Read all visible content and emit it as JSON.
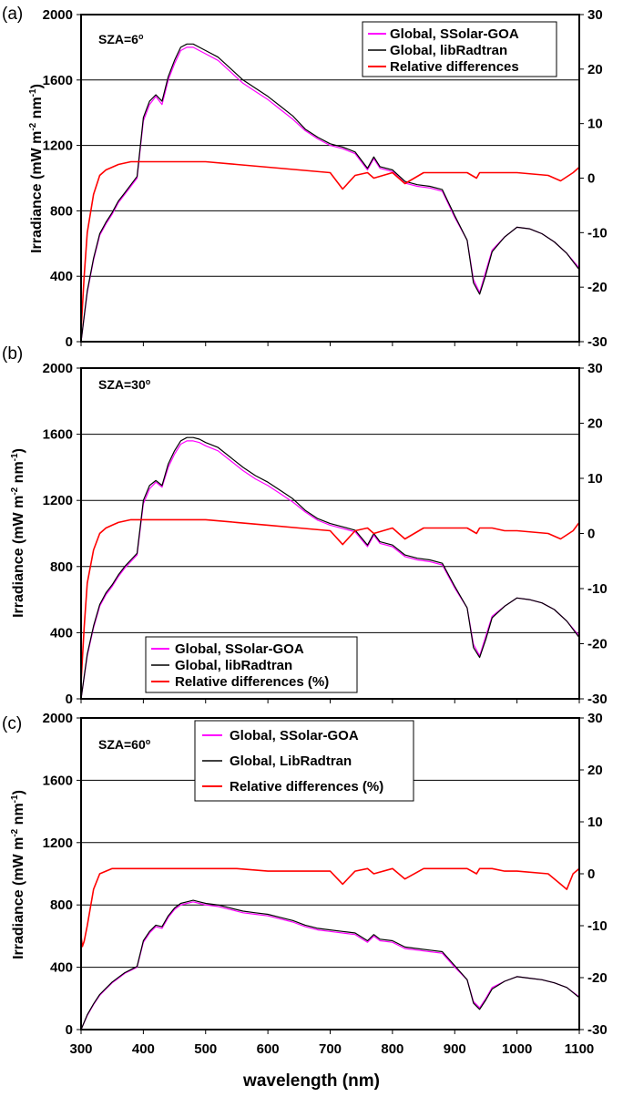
{
  "figure": {
    "xlabel": "wavelength (nm)",
    "x_ticks": [
      "300",
      "400",
      "500",
      "600",
      "700",
      "800",
      "900",
      "1000",
      "1100"
    ]
  },
  "panels": [
    {
      "label": "(a)",
      "sza_text": "SZA=6",
      "sza_sup": "o",
      "ylabel_main": "Irradiance (mW m",
      "ylabel_sup1": "-2",
      "ylabel_mid": " nm",
      "ylabel_sup2": "-1",
      "ylabel_end": ")",
      "legend_items": [
        "Global, SSolar-GOA",
        "Global, libRadtran",
        "Relative differences"
      ]
    },
    {
      "label": "(b)",
      "sza_text": "SZA=30",
      "sza_sup": "o",
      "ylabel_main": "Irradiance (mW m",
      "ylabel_sup1": "-2",
      "ylabel_mid": " nm",
      "ylabel_sup2": "-1",
      "ylabel_end": ")",
      "legend_items": [
        "Global, SSolar-GOA",
        "Global, libRadtran",
        "Relative differences (%)"
      ]
    },
    {
      "label": "(c)",
      "sza_text": "SZA=60",
      "sza_sup": "o",
      "ylabel_main": "Irradiance (mW m",
      "ylabel_sup1": "-2",
      "ylabel_mid": " nm",
      "ylabel_sup2": "-1",
      "ylabel_end": ")",
      "legend_items": [
        "Global, SSolar-GOA",
        "Global, LibRadtran",
        "Relative differences (%)"
      ]
    }
  ],
  "chart_data": [
    {
      "type": "line",
      "panel": "(a)",
      "xlim": [
        300,
        1100
      ],
      "ylim_left": [
        0,
        2000
      ],
      "ylim_right": [
        -30,
        30
      ],
      "yticks_left": [
        "0",
        "400",
        "800",
        "1200",
        "1600",
        "2000"
      ],
      "yticks_right": [
        "-30",
        "-20",
        "-10",
        "0",
        "10",
        "20",
        "30"
      ],
      "grid": "horizontal",
      "legend_position": "top-right",
      "colors": {
        "ssolar": "#ff00ff",
        "libradtran": "#000000",
        "reldiff": "#ff0000"
      },
      "series": [
        {
          "name": "Global, SSolar-GOA",
          "axis": "left",
          "x": [
            300,
            310,
            320,
            330,
            340,
            350,
            360,
            370,
            380,
            390,
            400,
            410,
            420,
            430,
            440,
            450,
            460,
            470,
            480,
            490,
            500,
            520,
            540,
            560,
            580,
            600,
            620,
            640,
            660,
            680,
            700,
            720,
            740,
            760,
            770,
            780,
            800,
            820,
            840,
            860,
            880,
            900,
            920,
            930,
            940,
            950,
            960,
            980,
            1000,
            1020,
            1040,
            1060,
            1080,
            1100
          ],
          "y": [
            0,
            300,
            500,
            650,
            720,
            780,
            850,
            900,
            950,
            1000,
            1350,
            1450,
            1500,
            1450,
            1600,
            1700,
            1780,
            1800,
            1800,
            1780,
            1760,
            1720,
            1650,
            1580,
            1530,
            1480,
            1420,
            1360,
            1290,
            1240,
            1200,
            1180,
            1150,
            1050,
            1120,
            1060,
            1040,
            970,
            950,
            940,
            920,
            760,
            620,
            380,
            300,
            430,
            560,
            640,
            700,
            690,
            660,
            610,
            540,
            450
          ]
        },
        {
          "name": "Global, libRadtran",
          "axis": "left",
          "x": [
            300,
            310,
            320,
            330,
            340,
            350,
            360,
            370,
            380,
            390,
            400,
            410,
            420,
            430,
            440,
            450,
            460,
            470,
            480,
            490,
            500,
            520,
            540,
            560,
            580,
            600,
            620,
            640,
            660,
            680,
            700,
            720,
            740,
            760,
            770,
            780,
            800,
            820,
            840,
            860,
            880,
            900,
            920,
            930,
            940,
            950,
            960,
            980,
            1000,
            1020,
            1040,
            1060,
            1080,
            1100
          ],
          "y": [
            0,
            310,
            510,
            660,
            730,
            790,
            860,
            910,
            960,
            1010,
            1370,
            1470,
            1510,
            1470,
            1620,
            1720,
            1800,
            1820,
            1820,
            1800,
            1780,
            1740,
            1670,
            1600,
            1550,
            1500,
            1440,
            1380,
            1300,
            1250,
            1210,
            1190,
            1160,
            1060,
            1130,
            1070,
            1050,
            980,
            960,
            950,
            930,
            770,
            620,
            360,
            290,
            410,
            550,
            640,
            700,
            690,
            660,
            610,
            540,
            440
          ]
        },
        {
          "name": "Relative differences",
          "axis": "right",
          "x": [
            300,
            305,
            310,
            320,
            330,
            340,
            350,
            360,
            380,
            400,
            450,
            500,
            550,
            600,
            650,
            700,
            720,
            740,
            760,
            770,
            800,
            820,
            850,
            900,
            920,
            935,
            940,
            950,
            960,
            980,
            1000,
            1050,
            1070,
            1090,
            1100
          ],
          "y": [
            -28,
            -18,
            -10,
            -3,
            0.5,
            1.5,
            2,
            2.5,
            3,
            3,
            3,
            3,
            2.5,
            2,
            1.5,
            1,
            -2,
            0.5,
            1,
            0,
            1,
            -1,
            1,
            1,
            1,
            0,
            1,
            1,
            1,
            1,
            1,
            0.5,
            -0.5,
            1,
            2
          ]
        }
      ]
    },
    {
      "type": "line",
      "panel": "(b)",
      "xlim": [
        300,
        1100
      ],
      "ylim_left": [
        0,
        2000
      ],
      "ylim_right": [
        -30,
        30
      ],
      "yticks_left": [
        "0",
        "400",
        "800",
        "1200",
        "1600",
        "2000"
      ],
      "yticks_right": [
        "-30",
        "-20",
        "-10",
        "0",
        "10",
        "20",
        "30"
      ],
      "grid": "horizontal",
      "legend_position": "bottom-left",
      "colors": {
        "ssolar": "#ff00ff",
        "libradtran": "#000000",
        "reldiff": "#ff0000"
      },
      "series": [
        {
          "name": "Global, SSolar-GOA",
          "axis": "left",
          "x": [
            300,
            310,
            320,
            330,
            340,
            350,
            360,
            370,
            380,
            390,
            400,
            410,
            420,
            430,
            440,
            450,
            460,
            470,
            480,
            490,
            500,
            520,
            540,
            560,
            580,
            600,
            620,
            640,
            660,
            680,
            700,
            720,
            740,
            760,
            770,
            780,
            800,
            820,
            840,
            860,
            880,
            900,
            920,
            930,
            940,
            950,
            960,
            980,
            1000,
            1020,
            1040,
            1060,
            1080,
            1100
          ],
          "y": [
            0,
            260,
            430,
            560,
            630,
            680,
            740,
            790,
            830,
            870,
            1180,
            1270,
            1310,
            1280,
            1400,
            1480,
            1540,
            1560,
            1560,
            1550,
            1530,
            1500,
            1440,
            1380,
            1330,
            1290,
            1240,
            1190,
            1130,
            1080,
            1050,
            1030,
            1010,
            920,
            990,
            940,
            920,
            860,
            840,
            830,
            810,
            670,
            550,
            330,
            260,
            380,
            500,
            560,
            610,
            600,
            580,
            540,
            470,
            380
          ]
        },
        {
          "name": "Global, libRadtran",
          "axis": "left",
          "x": [
            300,
            310,
            320,
            330,
            340,
            350,
            360,
            370,
            380,
            390,
            400,
            410,
            420,
            430,
            440,
            450,
            460,
            470,
            480,
            490,
            500,
            520,
            540,
            560,
            580,
            600,
            620,
            640,
            660,
            680,
            700,
            720,
            740,
            760,
            770,
            780,
            800,
            820,
            840,
            860,
            880,
            900,
            920,
            930,
            940,
            950,
            960,
            980,
            1000,
            1020,
            1040,
            1060,
            1080,
            1100
          ],
          "y": [
            0,
            270,
            440,
            570,
            640,
            690,
            750,
            800,
            840,
            880,
            1200,
            1290,
            1320,
            1290,
            1420,
            1500,
            1560,
            1580,
            1580,
            1570,
            1550,
            1520,
            1460,
            1400,
            1350,
            1310,
            1260,
            1210,
            1140,
            1090,
            1060,
            1040,
            1020,
            930,
            1000,
            950,
            930,
            870,
            850,
            840,
            820,
            680,
            550,
            310,
            250,
            360,
            490,
            560,
            610,
            600,
            580,
            540,
            470,
            370
          ]
        },
        {
          "name": "Relative differences (%)",
          "axis": "right",
          "x": [
            300,
            305,
            310,
            320,
            330,
            340,
            350,
            360,
            380,
            400,
            450,
            500,
            550,
            600,
            650,
            700,
            720,
            740,
            760,
            770,
            800,
            820,
            850,
            900,
            920,
            935,
            940,
            950,
            960,
            980,
            1000,
            1050,
            1070,
            1090,
            1100
          ],
          "y": [
            -27,
            -17,
            -9,
            -3,
            0,
            1,
            1.5,
            2,
            2.5,
            2.5,
            2.5,
            2.5,
            2,
            1.5,
            1,
            0.5,
            -2,
            0.5,
            1,
            0,
            1,
            -1,
            1,
            1,
            1,
            0,
            1,
            1,
            1,
            0.5,
            0.5,
            0,
            -1,
            0.5,
            2
          ]
        }
      ]
    },
    {
      "type": "line",
      "panel": "(c)",
      "xlim": [
        300,
        1100
      ],
      "ylim_left": [
        0,
        2000
      ],
      "ylim_right": [
        -30,
        30
      ],
      "yticks_left": [
        "0",
        "400",
        "800",
        "1200",
        "1600",
        "2000"
      ],
      "yticks_right": [
        "-30",
        "-20",
        "-10",
        "0",
        "10",
        "20",
        "30"
      ],
      "grid": "horizontal",
      "legend_position": "top-center",
      "colors": {
        "ssolar": "#ff00ff",
        "libradtran": "#000000",
        "reldiff": "#ff0000"
      },
      "series": [
        {
          "name": "Global, SSolar-GOA",
          "axis": "left",
          "x": [
            300,
            310,
            320,
            330,
            340,
            350,
            360,
            370,
            380,
            390,
            400,
            410,
            420,
            430,
            440,
            450,
            460,
            470,
            480,
            490,
            500,
            520,
            540,
            560,
            580,
            600,
            620,
            640,
            660,
            680,
            700,
            720,
            740,
            760,
            770,
            780,
            800,
            820,
            840,
            860,
            880,
            900,
            920,
            930,
            940,
            950,
            960,
            980,
            1000,
            1020,
            1040,
            1060,
            1080,
            1100
          ],
          "y": [
            0,
            90,
            160,
            220,
            260,
            300,
            330,
            360,
            380,
            400,
            560,
            620,
            660,
            650,
            720,
            770,
            800,
            810,
            820,
            810,
            800,
            790,
            770,
            750,
            740,
            730,
            710,
            690,
            660,
            640,
            630,
            620,
            610,
            560,
            600,
            570,
            560,
            520,
            510,
            500,
            490,
            400,
            320,
            180,
            140,
            200,
            270,
            310,
            340,
            330,
            320,
            300,
            270,
            210
          ]
        },
        {
          "name": "Global, LibRadtran",
          "axis": "left",
          "x": [
            300,
            310,
            320,
            330,
            340,
            350,
            360,
            370,
            380,
            390,
            400,
            410,
            420,
            430,
            440,
            450,
            460,
            470,
            480,
            490,
            500,
            520,
            540,
            560,
            580,
            600,
            620,
            640,
            660,
            680,
            700,
            720,
            740,
            760,
            770,
            780,
            800,
            820,
            840,
            860,
            880,
            900,
            920,
            930,
            940,
            950,
            960,
            980,
            1000,
            1020,
            1040,
            1060,
            1080,
            1100
          ],
          "y": [
            0,
            95,
            165,
            225,
            265,
            305,
            335,
            365,
            385,
            405,
            570,
            630,
            670,
            660,
            730,
            780,
            810,
            820,
            830,
            820,
            810,
            800,
            780,
            760,
            750,
            740,
            720,
            700,
            670,
            650,
            640,
            630,
            620,
            570,
            610,
            580,
            570,
            530,
            520,
            510,
            500,
            410,
            320,
            170,
            130,
            190,
            260,
            310,
            340,
            330,
            320,
            300,
            270,
            205
          ]
        },
        {
          "name": "Relative differences (%)",
          "axis": "right",
          "x": [
            300,
            302,
            305,
            310,
            320,
            330,
            340,
            350,
            360,
            380,
            400,
            450,
            500,
            550,
            600,
            650,
            700,
            720,
            740,
            760,
            770,
            800,
            820,
            850,
            900,
            920,
            935,
            940,
            950,
            960,
            980,
            1000,
            1050,
            1070,
            1080,
            1090,
            1100
          ],
          "y": [
            -12,
            -14,
            -13,
            -10,
            -3,
            0,
            0.5,
            1,
            1,
            1,
            1,
            1,
            1,
            1,
            0.5,
            0.5,
            0.5,
            -2,
            0.5,
            1,
            0,
            1,
            -1,
            1,
            1,
            1,
            0,
            1,
            1,
            1,
            0.5,
            0.5,
            0,
            -2,
            -3,
            0,
            1
          ]
        }
      ]
    }
  ]
}
